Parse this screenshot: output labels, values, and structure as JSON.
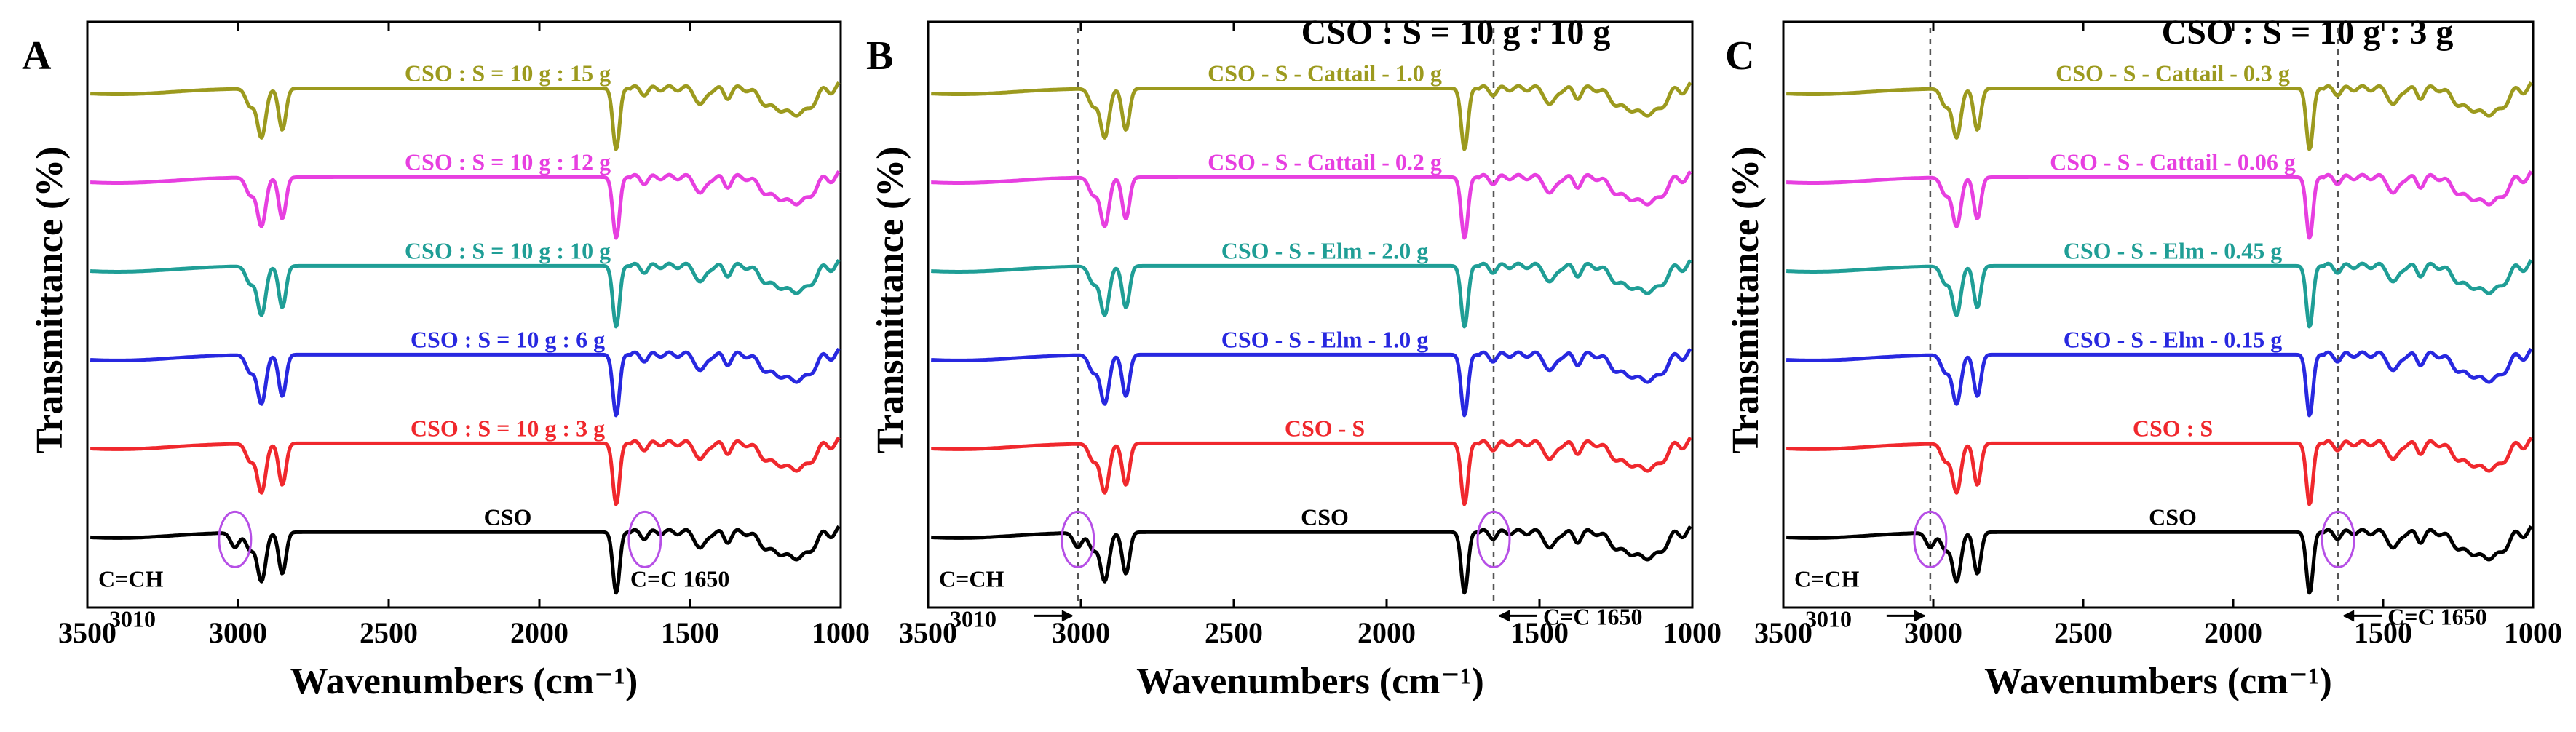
{
  "chart_data": [
    {
      "type": "line",
      "panel": "A",
      "title": "",
      "xlabel": "Wavenumbers (cm⁻¹)",
      "ylabel": "Transmittance (%)",
      "xlim": [
        3500,
        1000
      ],
      "xticks": [
        3500,
        3000,
        2500,
        2000,
        1500,
        1000
      ],
      "series": [
        {
          "name": "CSO : S = 10 g : 15 g",
          "color": "#9c9a1e",
          "offset": 5
        },
        {
          "name": "CSO : S = 10 g : 12 g",
          "color": "#e73fe0",
          "offset": 4
        },
        {
          "name": "CSO : S = 10 g : 10 g",
          "color": "#1f9e96",
          "offset": 3
        },
        {
          "name": "CSO : S = 10 g : 6 g",
          "color": "#2828e0",
          "offset": 2
        },
        {
          "name": "CSO : S = 10 g : 3 g",
          "color": "#f0282d",
          "offset": 1
        },
        {
          "name": "CSO",
          "color": "#000000",
          "offset": 0
        }
      ],
      "annotations": {
        "peak1_label": "C=CH",
        "peak1_value": "3010",
        "peak2_label": "C=C 1650"
      },
      "marked_wavenumbers": [
        3010,
        1650
      ],
      "dashed_lines": false
    },
    {
      "type": "line",
      "panel": "B",
      "title": "CSO : S  = 10 g : 10 g",
      "xlabel": "Wavenumbers (cm⁻¹)",
      "ylabel": "Transmittance (%)",
      "xlim": [
        3500,
        1000
      ],
      "xticks": [
        3500,
        3000,
        2500,
        2000,
        1500,
        1000
      ],
      "series": [
        {
          "name": "CSO - S  - Cattail - 1.0 g",
          "color": "#9c9a1e",
          "offset": 5
        },
        {
          "name": "CSO - S  - Cattail - 0.2 g",
          "color": "#e73fe0",
          "offset": 4
        },
        {
          "name": "CSO - S  - Elm - 2.0 g",
          "color": "#1f9e96",
          "offset": 3
        },
        {
          "name": "CSO - S  - Elm - 1.0 g",
          "color": "#2828e0",
          "offset": 2
        },
        {
          "name": "CSO - S",
          "color": "#f0282d",
          "offset": 1
        },
        {
          "name": "CSO",
          "color": "#000000",
          "offset": 0
        }
      ],
      "annotations": {
        "peak1_label": "C=CH",
        "peak1_value": "3010",
        "peak2_label": "C=C 1650"
      },
      "marked_wavenumbers": [
        3010,
        1650
      ],
      "dashed_lines": true
    },
    {
      "type": "line",
      "panel": "C",
      "title": "CSO : S  = 10 g : 3 g",
      "xlabel": "Wavenumbers (cm⁻¹)",
      "ylabel": "Transmittance (%)",
      "xlim": [
        3500,
        1000
      ],
      "xticks": [
        3500,
        3000,
        2500,
        2000,
        1500,
        1000
      ],
      "series": [
        {
          "name": "CSO - S - Cattail - 0.3 g",
          "color": "#9c9a1e",
          "offset": 5
        },
        {
          "name": "CSO - S - Cattail - 0.06 g",
          "color": "#e73fe0",
          "offset": 4
        },
        {
          "name": "CSO - S - Elm - 0.45 g",
          "color": "#1f9e96",
          "offset": 3
        },
        {
          "name": "CSO - S - Elm - 0.15 g",
          "color": "#2828e0",
          "offset": 2
        },
        {
          "name": "CSO : S",
          "color": "#f0282d",
          "offset": 1
        },
        {
          "name": "CSO",
          "color": "#000000",
          "offset": 0
        }
      ],
      "annotations": {
        "peak1_label": "C=CH",
        "peak1_value": "3010",
        "peak2_label": "C=C 1650"
      },
      "marked_wavenumbers": [
        3010,
        1650
      ],
      "dashed_lines": true
    }
  ]
}
